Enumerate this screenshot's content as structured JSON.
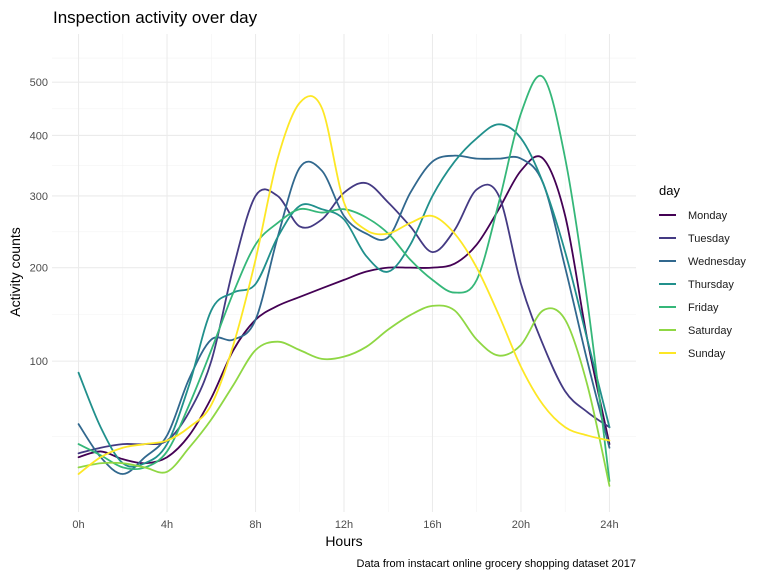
{
  "chart_data": {
    "type": "line",
    "title": "Inspection activity over day",
    "xlabel": "Hours",
    "ylabel": "Activity counts",
    "caption": "Data from instacart online grocery shopping dataset 2017",
    "x_ticks": [
      {
        "value": 0,
        "label": "0h"
      },
      {
        "value": 4,
        "label": "4h"
      },
      {
        "value": 8,
        "label": "8h"
      },
      {
        "value": 12,
        "label": "12h"
      },
      {
        "value": 16,
        "label": "16h"
      },
      {
        "value": 20,
        "label": "20h"
      },
      {
        "value": 24,
        "label": "24h"
      }
    ],
    "y_ticks": [
      {
        "value": 100,
        "label": "100"
      },
      {
        "value": 200,
        "label": "200"
      },
      {
        "value": 300,
        "label": "300"
      },
      {
        "value": 400,
        "label": "400"
      },
      {
        "value": 500,
        "label": "500"
      }
    ],
    "y_scale": "sqrt",
    "xlim": [
      -1.2,
      25.2
    ],
    "ylim": [
      11,
      600
    ],
    "grid": true,
    "legend": {
      "title": "day",
      "position": "right"
    },
    "x": [
      0,
      1,
      2,
      3,
      4,
      5,
      6,
      7,
      8,
      9,
      10,
      11,
      12,
      13,
      14,
      15,
      16,
      17,
      18,
      19,
      20,
      21,
      22,
      23,
      24
    ],
    "series": [
      {
        "name": "Monday",
        "color": "#440154",
        "values": [
          33,
          36,
          32,
          30,
          33,
          45,
          70,
          110,
          140,
          155,
          165,
          175,
          185,
          195,
          200,
          200,
          200,
          205,
          230,
          280,
          340,
          360,
          270,
          120,
          40
        ]
      },
      {
        "name": "Tuesday",
        "color": "#443A83",
        "values": [
          35,
          38,
          40,
          40,
          42,
          60,
          100,
          200,
          300,
          300,
          255,
          265,
          305,
          320,
          290,
          255,
          220,
          250,
          310,
          300,
          180,
          115,
          75,
          60,
          50
        ]
      },
      {
        "name": "Wednesday",
        "color": "#31688E",
        "values": [
          52,
          33,
          25,
          33,
          45,
          85,
          120,
          120,
          140,
          240,
          345,
          340,
          270,
          245,
          240,
          305,
          355,
          365,
          360,
          360,
          360,
          320,
          200,
          100,
          38
        ]
      },
      {
        "name": "Thursday",
        "color": "#21908C",
        "values": [
          90,
          50,
          30,
          30,
          40,
          80,
          150,
          170,
          180,
          240,
          285,
          280,
          265,
          215,
          195,
          230,
          300,
          355,
          395,
          420,
          395,
          320,
          220,
          120,
          50
        ]
      },
      {
        "name": "Friday",
        "color": "#35B779",
        "values": [
          40,
          34,
          28,
          28,
          36,
          65,
          110,
          170,
          230,
          260,
          280,
          275,
          280,
          268,
          245,
          210,
          185,
          170,
          185,
          290,
          440,
          510,
          360,
          160,
          22
        ]
      },
      {
        "name": "Saturday",
        "color": "#8FD744",
        "values": [
          28,
          30,
          30,
          28,
          26,
          38,
          55,
          80,
          110,
          118,
          110,
          102,
          104,
          113,
          130,
          145,
          155,
          150,
          120,
          105,
          115,
          150,
          140,
          80,
          20
        ]
      },
      {
        "name": "Sunday",
        "color": "#FDE725",
        "values": [
          25,
          33,
          38,
          40,
          42,
          50,
          65,
          115,
          210,
          360,
          460,
          450,
          290,
          250,
          245,
          260,
          270,
          245,
          200,
          145,
          95,
          65,
          50,
          45,
          42
        ]
      }
    ]
  }
}
